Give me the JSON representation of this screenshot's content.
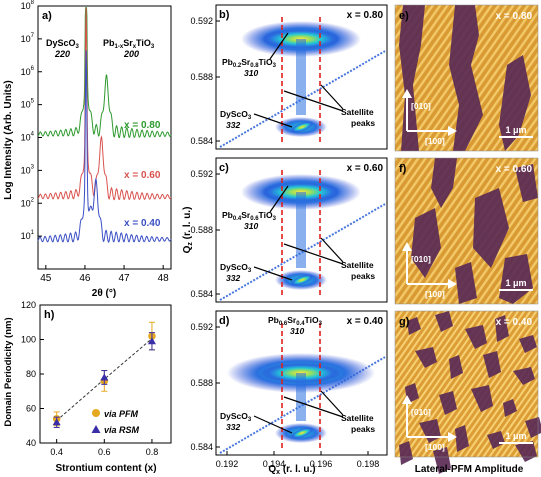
{
  "xrd": {
    "label": "a)",
    "ylabel": "Log Intensity (Arb. Units)",
    "xlabel": "2θ (°)",
    "xticks": [
      "45",
      "46",
      "47",
      "48"
    ],
    "yticks": [
      "10",
      "10",
      "10",
      "10",
      "10",
      "10",
      "10",
      "10"
    ],
    "yexp": [
      "1",
      "2",
      "3",
      "4",
      "5",
      "6",
      "7",
      "8"
    ],
    "substrate_name": "DyScO",
    "substrate_sub": "3",
    "substrate_hkl": "220",
    "film_name_a": "Pb",
    "film_sub_a": "1-x",
    "film_name_b": "Sr",
    "film_sub_b": "x",
    "film_name_c": "TiO",
    "film_sub_c": "3",
    "film_hkl": "200",
    "curves": [
      {
        "label": "x = 0.80",
        "color": "#2e9a2e"
      },
      {
        "label": "x = 0.60",
        "color": "#d9534f"
      },
      {
        "label": "x = 0.40",
        "color": "#3b4fc4"
      }
    ]
  },
  "rsm": {
    "ylabel": "Q",
    "ylabel_sub": "z",
    "ylabel_unit": " (r. l. u.)",
    "xlabel": "Q",
    "xlabel_sub": "x",
    "xlabel_unit": " (r. l. u.)",
    "yticks": [
      "0.592",
      "0.588",
      "0.584"
    ],
    "xticks": [
      "0.192",
      "0.194",
      "0.196",
      "0.198"
    ],
    "satellite_label_1": "Satellite",
    "satellite_label_2": "peaks",
    "substrate_name": "DyScO",
    "substrate_sub": "3",
    "substrate_hkl": "332",
    "panels": [
      {
        "label": "b)",
        "x": "x = 0.80",
        "film_a": "Pb",
        "film_asub": "0.2",
        "film_b": "Sr",
        "film_bsub": "0.8",
        "film_c": "TiO",
        "film_csub": "3",
        "hkl": "310"
      },
      {
        "label": "c)",
        "x": "x = 0.60",
        "film_a": "Pb",
        "film_asub": "0.4",
        "film_b": "Sr",
        "film_bsub": "0.6",
        "film_c": "TiO",
        "film_csub": "3",
        "hkl": "310"
      },
      {
        "label": "d)",
        "x": "x = 0.40",
        "film_a": "Pb",
        "film_asub": "0.6",
        "film_b": "Sr",
        "film_bsub": "0.4",
        "film_c": "TiO",
        "film_csub": "3",
        "hkl": "310"
      }
    ]
  },
  "pfm": {
    "caption": "Lateral-PFM Amplitude",
    "axis_a": "[010]",
    "axis_b": "[100]",
    "scale": "1 μm",
    "panels": [
      {
        "label": "e)",
        "x": "x = 0.80"
      },
      {
        "label": "f)",
        "x": "x = 0.60"
      },
      {
        "label": "g)",
        "x": "x = 0.40"
      }
    ]
  },
  "periodicity": {
    "label": "h)",
    "ylabel": "Domain Periodicity (nm)",
    "xlabel": "Strontium content (x)",
    "xticks": [
      "0.4",
      "0.6",
      "0.8"
    ],
    "yticks": [
      "40",
      "60",
      "80",
      "100",
      "120"
    ],
    "legend_pfm": "via PFM",
    "legend_rsm": "via RSM",
    "pfm_color": "#e5a820",
    "rsm_color": "#3a2ea8"
  },
  "chart_data": [
    {
      "type": "line",
      "title": "",
      "xlabel": "2θ (°)",
      "ylabel": "Log Intensity (Arb. Units)",
      "xlim": [
        44.8,
        48.2
      ],
      "ylim": [
        1,
        100000000
      ],
      "yscale": "log",
      "series": [
        {
          "name": "x = 0.80"
        },
        {
          "name": "x = 0.60"
        },
        {
          "name": "x = 0.40"
        }
      ]
    },
    {
      "type": "scatter",
      "title": "",
      "xlabel": "Strontium content (x)",
      "ylabel": "Domain Periodicity (nm)",
      "xlim": [
        0.33,
        0.88
      ],
      "ylim": [
        40,
        120
      ],
      "series": [
        {
          "name": "via PFM",
          "x": [
            0.4,
            0.6,
            0.8
          ],
          "y": [
            54,
            76,
            102
          ],
          "err": [
            4,
            6,
            8
          ]
        },
        {
          "name": "via RSM",
          "x": [
            0.4,
            0.6,
            0.8
          ],
          "y": [
            52,
            78,
            99
          ],
          "err": [
            3,
            4,
            5
          ]
        }
      ]
    }
  ]
}
